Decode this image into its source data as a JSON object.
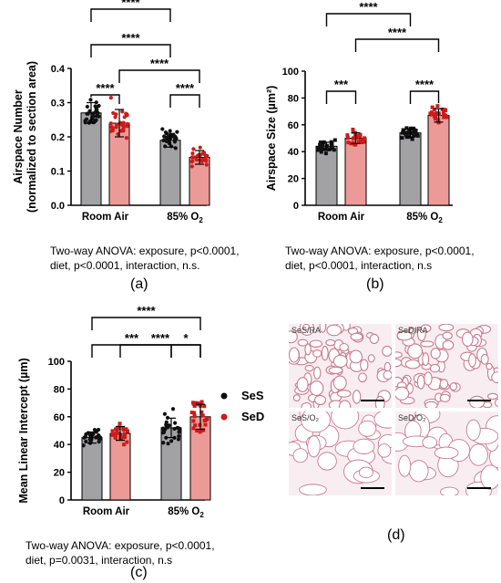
{
  "colors": {
    "ses_bar": "#a2a2a5",
    "sed_bar": "#ec9a97",
    "ses_dot": "#111111",
    "sed_dot": "#cc1b1b"
  },
  "chart_data": [
    {
      "id": "a",
      "type": "bar",
      "panel_label": "(a)",
      "ylabel": "Airspace Number\n(normalized to section area)",
      "xlabel": "",
      "categories": [
        "Room Air",
        "85% O2"
      ],
      "yticks": [
        "0.0",
        "0.1",
        "0.2",
        "0.3",
        "0.4"
      ],
      "ylim": [
        0,
        0.4
      ],
      "series": [
        {
          "name": "SeS",
          "values": [
            0.27,
            0.19
          ],
          "errors": [
            0.03,
            0.02
          ]
        },
        {
          "name": "SeD",
          "values": [
            0.24,
            0.14
          ],
          "errors": [
            0.04,
            0.02
          ]
        }
      ],
      "significance": [
        {
          "from": 0,
          "to": 2,
          "level": 3,
          "label": "****"
        },
        {
          "from": 0,
          "to": 1,
          "level": 0,
          "label": "****"
        },
        {
          "from": 1,
          "to": 3,
          "level": 1,
          "label": "****"
        },
        {
          "from": 0,
          "to": 2,
          "level": 2,
          "label": "****"
        },
        {
          "from": 2,
          "to": 3,
          "level": 0,
          "label": "****"
        }
      ],
      "footnote": "Two-way ANOVA: exposure, p<0.0001,\ndiet, p<0.0001, interaction, n.s."
    },
    {
      "id": "b",
      "type": "bar",
      "panel_label": "(b)",
      "ylabel": "Airspace Size (µm²)",
      "xlabel": "",
      "categories": [
        "Room Air",
        "85% O2"
      ],
      "yticks": [
        "0",
        "20",
        "40",
        "60",
        "80",
        "100"
      ],
      "ylim": [
        0,
        100
      ],
      "series": [
        {
          "name": "SeS",
          "values": [
            44,
            54
          ],
          "errors": [
            3,
            3
          ]
        },
        {
          "name": "SeD",
          "values": [
            50,
            67
          ],
          "errors": [
            4,
            5
          ]
        }
      ],
      "significance": [
        {
          "from": 0,
          "to": 2,
          "level": 3,
          "label": "****"
        },
        {
          "from": 1,
          "to": 3,
          "level": 2,
          "label": "****"
        },
        {
          "from": 0,
          "to": 1,
          "level": 0,
          "label": "***"
        },
        {
          "from": 2,
          "to": 3,
          "level": 0,
          "label": "****"
        }
      ],
      "footnote": "Two-way ANOVA: exposure, p<0.0001,\ndiet, p<0.0001, interaction, n.s"
    },
    {
      "id": "c",
      "type": "bar",
      "panel_label": "(c)",
      "ylabel": "Mean Linear Intercept (µm)",
      "xlabel": "",
      "categories": [
        "Room Air",
        "85% O2"
      ],
      "yticks": [
        "0",
        "20",
        "40",
        "60",
        "80",
        "100"
      ],
      "ylim": [
        0,
        100
      ],
      "series": [
        {
          "name": "SeS",
          "values": [
            45,
            52
          ],
          "errors": [
            4,
            7
          ]
        },
        {
          "name": "SeD",
          "values": [
            48,
            60
          ],
          "errors": [
            5,
            9
          ]
        }
      ],
      "significance": [
        {
          "from": 0,
          "to": 3,
          "level": 3,
          "label": "****"
        },
        {
          "from": 1,
          "to": 3,
          "level": 2,
          "label": "****"
        },
        {
          "from": 0,
          "to": 2,
          "level": 1,
          "label": "***"
        },
        {
          "from": 2,
          "to": 3,
          "level": 1,
          "label": "*"
        }
      ],
      "legend": [
        {
          "name": "SeS",
          "color": "#111111"
        },
        {
          "name": "SeD",
          "color": "#cc1b1b"
        }
      ],
      "footnote": "Two-way ANOVA: exposure, p<0.0001,\ndiet, p=0.0031, interaction, n.s"
    }
  ],
  "micrographs": {
    "panel_label": "(d)",
    "tiles": [
      {
        "label": "SeS/RA",
        "density": "dense"
      },
      {
        "label": "SeD/RA",
        "density": "dense"
      },
      {
        "label": "SeS/O₂",
        "density": "sparse"
      },
      {
        "label": "SeD/O₂",
        "density": "sparse"
      }
    ]
  }
}
